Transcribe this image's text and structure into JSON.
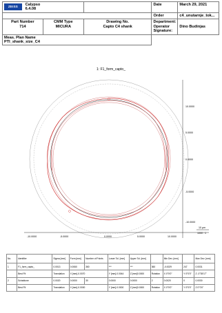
{
  "header": {
    "logo": "ZEISS",
    "app_name": "Calypso",
    "app_version": "6.4.08",
    "date_label": "Date",
    "date_value": "March 29, 2021",
    "order_label": "Order",
    "order_value": "c4_unutarnje_tok...",
    "part_number_label": "Part Number",
    "part_number_value": "714",
    "cmm_type_label": "CMM Type",
    "cmm_type_value": "MICURA",
    "drawing_no_label": "Drawing No.",
    "drawing_no_value": "Capto C4 shank",
    "department_label": "Department:",
    "operator_label": "Operator",
    "operator_value": "Dino Budinjas",
    "signature_label": "Signature:",
    "meas_plan_label": "Meas. Plan Name",
    "meas_plan_value": "PTI_shank_size_C4"
  },
  "plot": {
    "title": "1: F1_form_capto_",
    "x_ticks": [
      "-10.0000",
      "-5.0000",
      "0.0000",
      "5.0000",
      "10.0000"
    ],
    "y_ticks": [
      "10.0000",
      "5.0000",
      "0.0000",
      "-5.0000",
      "-10.0000"
    ],
    "scale_value": "10 μm",
    "scale_ratio": "1000 : 1",
    "colors": {
      "nominal": "#000000",
      "actual": "#cc1f1f",
      "tolerance": "#c04040"
    }
  },
  "results": {
    "headers": [
      "No.",
      "Identifier",
      "Sigma [mm]",
      "Form [mm]",
      "Number of Points",
      "Lower Tol. [mm]",
      "Upper Tol. [mm]",
      "Min Dev. [mm]",
      "Max Dev. [mm]"
    ],
    "rows": [
      [
        "1",
        "F1_form_capto_",
        "0.0013",
        "0.0060",
        "360",
        "***",
        "***",
        "360",
        "-0.0029",
        "247",
        "0.0031"
      ],
      [
        "",
        "Best Fit",
        "Translation",
        "X [mm]-0.0070",
        "Y [mm]-0.0044",
        "Z [mm]0.0000",
        "Rotation",
        "X  0°0'0\"",
        "Y  0°0'0\"",
        "Z  -0°35'17\""
      ],
      [
        "2",
        "Schablone",
        "0.0020",
        "0.0000",
        "30",
        "0.0000",
        "0.0000",
        "2",
        "0.0020",
        "0",
        "0.0030"
      ],
      [
        "",
        "Best Fit",
        "Translation",
        "X [mm]-0.0000",
        "Y [mm]-0.0000",
        "Z [mm]0.0000",
        "Rotation",
        "X  0°0'0\"",
        "Y  0°0'0\"",
        "Z  0°0'0\""
      ]
    ]
  }
}
